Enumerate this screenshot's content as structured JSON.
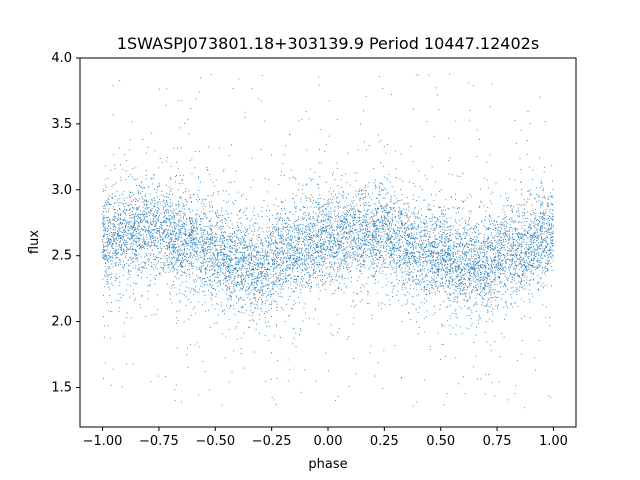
{
  "chart_data": {
    "type": "scatter",
    "title": "1SWASPJ073801.18+303139.9 Period 10447.12402s",
    "xlabel": "phase",
    "ylabel": "flux",
    "xlim": [
      -1.1,
      1.1
    ],
    "ylim": [
      1.2,
      4.0
    ],
    "x_ticks": [
      -1.0,
      -0.75,
      -0.5,
      -0.25,
      0.0,
      0.25,
      0.5,
      0.75,
      1.0
    ],
    "x_tick_labels": [
      "−1.00",
      "−0.75",
      "−0.50",
      "−0.25",
      "0.00",
      "0.25",
      "0.50",
      "0.75",
      "1.00"
    ],
    "y_ticks": [
      1.5,
      2.0,
      2.5,
      3.0,
      3.5,
      4.0
    ],
    "y_tick_labels": [
      "1.5",
      "2.0",
      "2.5",
      "3.0",
      "3.5",
      "4.0"
    ],
    "grid": false,
    "legend": "none",
    "colors": {
      "points": "#1f77b4",
      "axes": "#000000",
      "background": "#ffffff"
    },
    "series": [
      {
        "phase_range": [
          -1.0,
          1.0
        ],
        "trend": {
          "phase": [
            -1.0,
            -0.8,
            -0.6,
            -0.4,
            -0.3,
            -0.2,
            0.0,
            0.2,
            0.4,
            0.6,
            0.7,
            0.8,
            1.0
          ],
          "flux": [
            2.62,
            2.7,
            2.6,
            2.45,
            2.42,
            2.5,
            2.62,
            2.68,
            2.55,
            2.44,
            2.43,
            2.52,
            2.65
          ]
        },
        "core_spread": 0.18,
        "outlier_range": [
          1.33,
          3.88
        ]
      }
    ]
  }
}
